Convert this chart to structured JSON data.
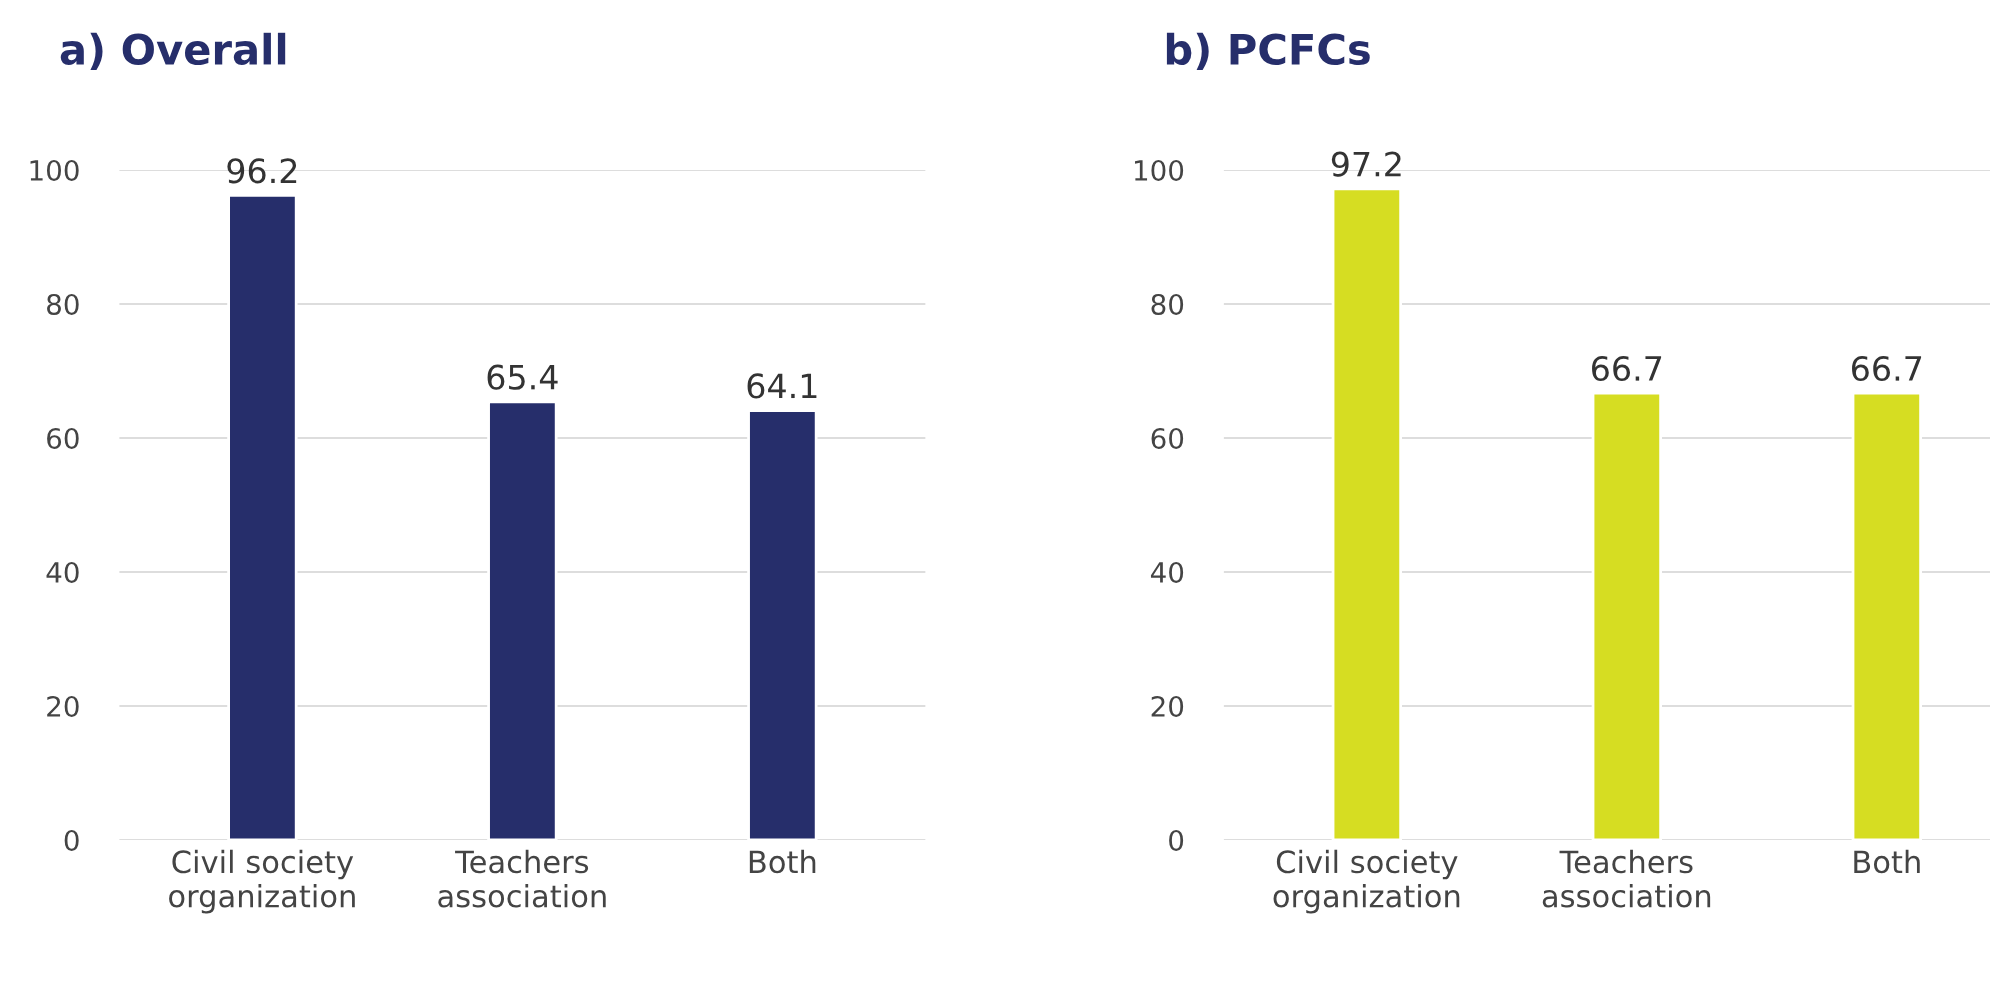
{
  "chart_data": [
    {
      "type": "bar",
      "title": "a) Overall",
      "categories": [
        "Civil society\norganization",
        "Teachers\nassociation",
        "Both"
      ],
      "values": [
        96.2,
        65.4,
        64.1
      ],
      "color": "#262e6b",
      "ylim": [
        0,
        100
      ],
      "yticks": [
        0,
        20,
        40,
        60,
        80,
        100
      ],
      "grid": "y",
      "data_labels": true
    },
    {
      "type": "bar",
      "title": "b) PCFCs",
      "categories": [
        "Civil society\norganization",
        "Teachers\nassociation",
        "Both"
      ],
      "values": [
        97.2,
        66.7,
        66.7
      ],
      "color": "#d6dd22",
      "ylim": [
        0,
        100
      ],
      "yticks": [
        0,
        20,
        40,
        60,
        80,
        100
      ],
      "grid": "y",
      "data_labels": true
    }
  ]
}
